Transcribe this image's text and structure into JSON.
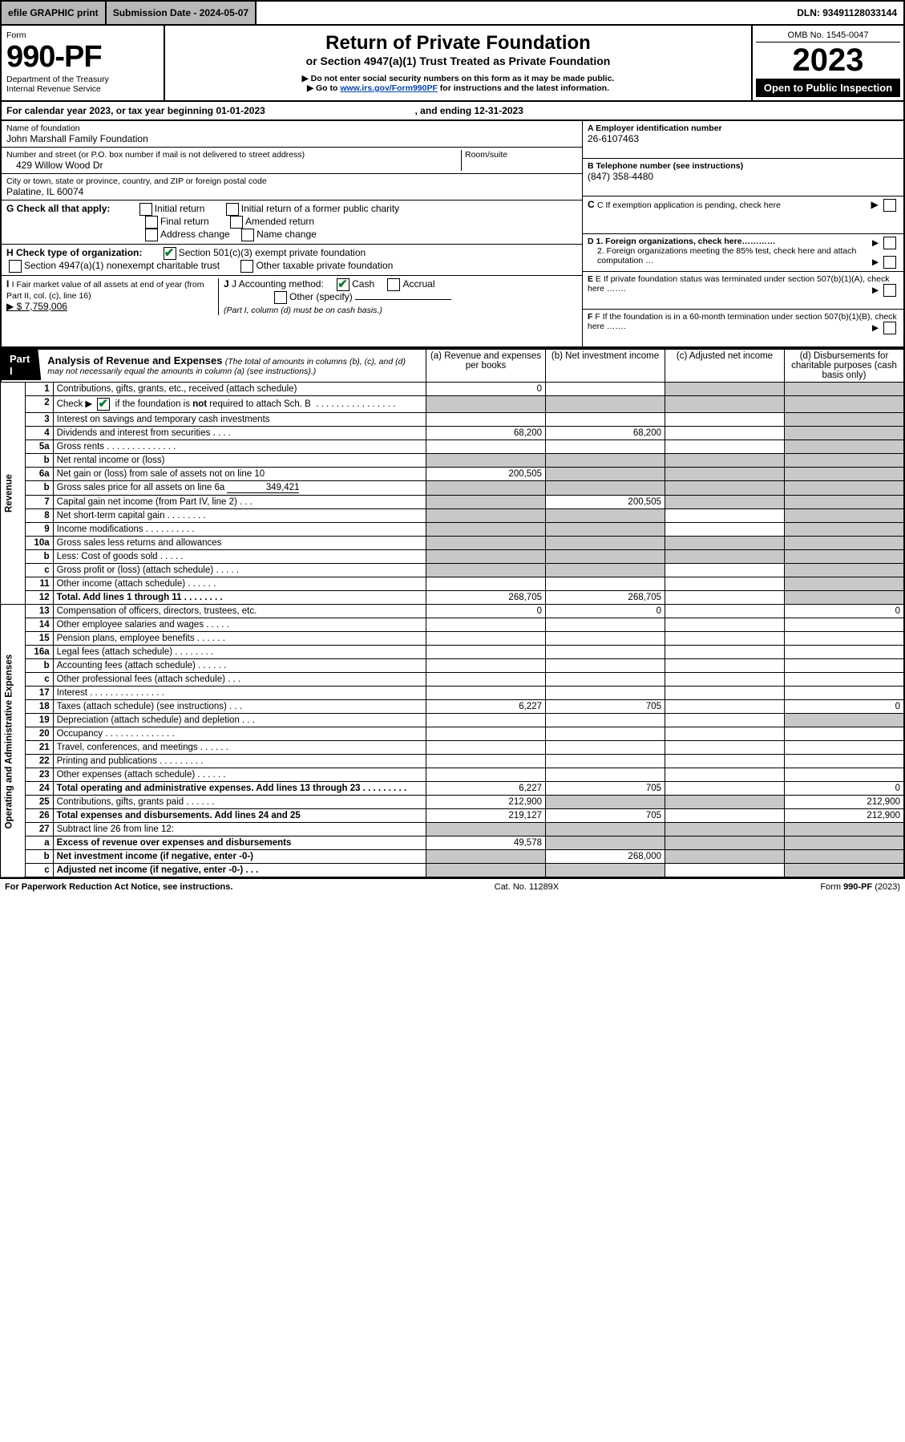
{
  "topbar": {
    "efile": "efile GRAPHIC print",
    "submission_label": "Submission Date - 2024-05-07",
    "dln_label": "DLN: 93491128033144"
  },
  "header": {
    "form_word": "Form",
    "form_no": "990-PF",
    "dept1": "Department of the Treasury",
    "dept2": "Internal Revenue Service",
    "title": "Return of Private Foundation",
    "subtitle": "or Section 4947(a)(1) Trust Treated as Private Foundation",
    "warn1": "▶ Do not enter social security numbers on this form as it may be made public.",
    "warn2_pre": "▶ Go to ",
    "warn2_link": "www.irs.gov/Form990PF",
    "warn2_post": " for instructions and the latest information.",
    "omb": "OMB No. 1545-0047",
    "year": "2023",
    "open": "Open to Public Inspection"
  },
  "cal": {
    "line": "For calendar year 2023, or tax year beginning 01-01-2023",
    "end": ", and ending 12-31-2023"
  },
  "id": {
    "name_label": "Name of foundation",
    "name": "John Marshall Family Foundation",
    "addr_label": "Number and street (or P.O. box number if mail is not delivered to street address)",
    "room_label": "Room/suite",
    "addr": "429 Willow Wood Dr",
    "city_label": "City or town, state or province, country, and ZIP or foreign postal code",
    "city": "Palatine, IL  60074",
    "ein_label": "A Employer identification number",
    "ein": "26-6107463",
    "tel_label": "B Telephone number (see instructions)",
    "tel": "(847) 358-4480",
    "c_label": "C If exemption application is pending, check here",
    "d1": "D 1. Foreign organizations, check here…………",
    "d2": "2. Foreign organizations meeting the 85% test, check here and attach computation …",
    "e": "E If private foundation status was terminated under section 507(b)(1)(A), check here …….",
    "f": "F If the foundation is in a 60-month termination under section 507(b)(1)(B), check here …….",
    "g_label": "G Check all that apply:",
    "g_opts": [
      "Initial return",
      "Initial return of a former public charity",
      "Final return",
      "Amended return",
      "Address change",
      "Name change"
    ],
    "h_label": "H Check type of organization:",
    "h1": "Section 501(c)(3) exempt private foundation",
    "h2": "Section 4947(a)(1) nonexempt charitable trust",
    "h3": "Other taxable private foundation",
    "i_label": "I Fair market value of all assets at end of year (from Part II, col. (c), line 16)",
    "i_val": "▶ $  7,759,006",
    "j_label": "J Accounting method:",
    "j_cash": "Cash",
    "j_acc": "Accrual",
    "j_other": "Other (specify)",
    "j_note": "(Part I, column (d) must be on cash basis.)"
  },
  "part1": {
    "tab": "Part I",
    "title": "Analysis of Revenue and Expenses",
    "title_note": " (The total of amounts in columns (b), (c), and (d) may not necessarily equal the amounts in column (a) (see instructions).)",
    "cols": {
      "a": "(a) Revenue and expenses per books",
      "b": "(b) Net investment income",
      "c": "(c) Adjusted net income",
      "d": "(d) Disbursements for charitable purposes (cash basis only)"
    }
  },
  "side": {
    "rev": "Revenue",
    "exp": "Operating and Administrative Expenses"
  },
  "rows": [
    {
      "n": "1",
      "label": "Contributions, gifts, grants, etc., received (attach schedule)",
      "a": "0",
      "b": "",
      "c": "shade",
      "d": "shade"
    },
    {
      "n": "2",
      "label": "Check ▶ ☑ if the foundation is not required to attach Sch. B . . . . . . . . . . . . . . . . . .",
      "a": "shade",
      "b": "shade",
      "c": "shade",
      "d": "shade"
    },
    {
      "n": "3",
      "label": "Interest on savings and temporary cash investments",
      "a": "",
      "b": "",
      "c": "",
      "d": "shade"
    },
    {
      "n": "4",
      "label": "Dividends and interest from securities . . . .",
      "a": "68,200",
      "b": "68,200",
      "c": "",
      "d": "shade"
    },
    {
      "n": "5a",
      "label": "Gross rents . . . . . . . . . . . . . .",
      "a": "",
      "b": "",
      "c": "",
      "d": "shade"
    },
    {
      "n": "b",
      "label": "Net rental income or (loss)  ",
      "a": "shade",
      "b": "shade",
      "c": "shade",
      "d": "shade"
    },
    {
      "n": "6a",
      "label": "Net gain or (loss) from sale of assets not on line 10",
      "a": "200,505",
      "b": "shade",
      "c": "shade",
      "d": "shade"
    },
    {
      "n": "b",
      "label": "Gross sales price for all assets on line 6a               349,421",
      "a": "shade",
      "b": "shade",
      "c": "shade",
      "d": "shade"
    },
    {
      "n": "7",
      "label": "Capital gain net income (from Part IV, line 2) . . .",
      "a": "shade",
      "b": "200,505",
      "c": "shade",
      "d": "shade"
    },
    {
      "n": "8",
      "label": "Net short-term capital gain . . . . . . . .",
      "a": "shade",
      "b": "shade",
      "c": "",
      "d": "shade"
    },
    {
      "n": "9",
      "label": "Income modifications . . . . . . . . . .",
      "a": "shade",
      "b": "shade",
      "c": "",
      "d": "shade"
    },
    {
      "n": "10a",
      "label": "Gross sales less returns and allowances",
      "a": "shade",
      "b": "shade",
      "c": "shade",
      "d": "shade"
    },
    {
      "n": "b",
      "label": "Less: Cost of goods sold . . . . .",
      "a": "shade",
      "b": "shade",
      "c": "shade",
      "d": "shade"
    },
    {
      "n": "c",
      "label": "Gross profit or (loss) (attach schedule) . . . . .",
      "a": "shade",
      "b": "shade",
      "c": "",
      "d": "shade"
    },
    {
      "n": "11",
      "label": "Other income (attach schedule) . . . . . .",
      "a": "",
      "b": "",
      "c": "",
      "d": "shade"
    },
    {
      "n": "12",
      "label": "Total. Add lines 1 through 11 . . . . . . . .",
      "bold": true,
      "a": "268,705",
      "b": "268,705",
      "c": "",
      "d": "shade"
    },
    {
      "n": "13",
      "label": "Compensation of officers, directors, trustees, etc.",
      "a": "0",
      "b": "0",
      "c": "",
      "d": "0"
    },
    {
      "n": "14",
      "label": "Other employee salaries and wages . . . . .",
      "a": "",
      "b": "",
      "c": "",
      "d": ""
    },
    {
      "n": "15",
      "label": "Pension plans, employee benefits . . . . . .",
      "a": "",
      "b": "",
      "c": "",
      "d": ""
    },
    {
      "n": "16a",
      "label": "Legal fees (attach schedule) . . . . . . . .",
      "a": "",
      "b": "",
      "c": "",
      "d": ""
    },
    {
      "n": "b",
      "label": "Accounting fees (attach schedule) . . . . . .",
      "a": "",
      "b": "",
      "c": "",
      "d": ""
    },
    {
      "n": "c",
      "label": "Other professional fees (attach schedule) . . .",
      "a": "",
      "b": "",
      "c": "",
      "d": ""
    },
    {
      "n": "17",
      "label": "Interest . . . . . . . . . . . . . . .",
      "a": "",
      "b": "",
      "c": "",
      "d": ""
    },
    {
      "n": "18",
      "label": "Taxes (attach schedule) (see instructions) . . .",
      "a": "6,227",
      "b": "705",
      "c": "",
      "d": "0"
    },
    {
      "n": "19",
      "label": "Depreciation (attach schedule) and depletion . . .",
      "a": "",
      "b": "",
      "c": "",
      "d": "shade"
    },
    {
      "n": "20",
      "label": "Occupancy . . . . . . . . . . . . . .",
      "a": "",
      "b": "",
      "c": "",
      "d": ""
    },
    {
      "n": "21",
      "label": "Travel, conferences, and meetings . . . . . .",
      "a": "",
      "b": "",
      "c": "",
      "d": ""
    },
    {
      "n": "22",
      "label": "Printing and publications . . . . . . . . .",
      "a": "",
      "b": "",
      "c": "",
      "d": ""
    },
    {
      "n": "23",
      "label": "Other expenses (attach schedule) . . . . . .",
      "a": "",
      "b": "",
      "c": "",
      "d": ""
    },
    {
      "n": "24",
      "label": "Total operating and administrative expenses. Add lines 13 through 23 . . . . . . . . .",
      "bold": true,
      "a": "6,227",
      "b": "705",
      "c": "",
      "d": "0"
    },
    {
      "n": "25",
      "label": "Contributions, gifts, grants paid . . . . . .",
      "a": "212,900",
      "b": "shade",
      "c": "shade",
      "d": "212,900"
    },
    {
      "n": "26",
      "label": "Total expenses and disbursements. Add lines 24 and 25",
      "bold": true,
      "a": "219,127",
      "b": "705",
      "c": "",
      "d": "212,900"
    },
    {
      "n": "27",
      "label": "Subtract line 26 from line 12:",
      "a": "shade",
      "b": "shade",
      "c": "shade",
      "d": "shade"
    },
    {
      "n": "a",
      "label": "Excess of revenue over expenses and disbursements",
      "bold": true,
      "a": "49,578",
      "b": "shade",
      "c": "shade",
      "d": "shade"
    },
    {
      "n": "b",
      "label": "Net investment income (if negative, enter -0-)",
      "bold": true,
      "a": "shade",
      "b": "268,000",
      "c": "shade",
      "d": "shade"
    },
    {
      "n": "c",
      "label": "Adjusted net income (if negative, enter -0-) . . .",
      "bold": true,
      "a": "shade",
      "b": "shade",
      "c": "",
      "d": "shade"
    }
  ],
  "footer": {
    "left": "For Paperwork Reduction Act Notice, see instructions.",
    "mid": "Cat. No. 11289X",
    "right": "Form 990-PF (2023)"
  }
}
